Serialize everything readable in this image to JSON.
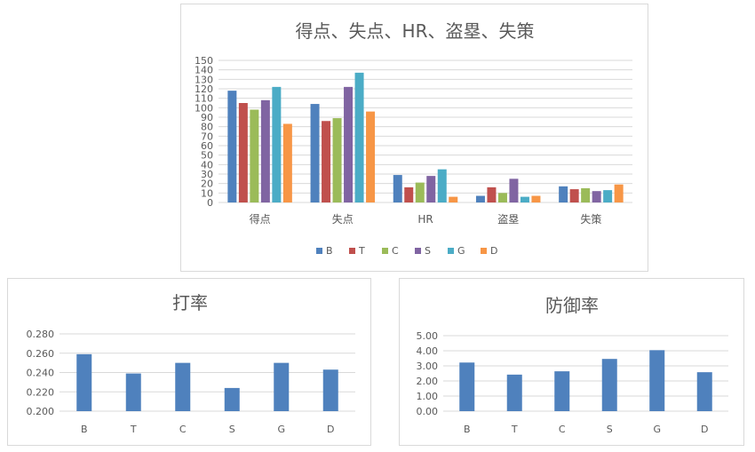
{
  "colors": {
    "B": "#4F81BD",
    "T": "#C0504D",
    "C": "#9BBB59",
    "S": "#8064A2",
    "G": "#4BACC6",
    "D": "#F79646",
    "single": "#4F81BD",
    "grid": "#d9d9d9",
    "text": "#595959"
  },
  "chart_data": [
    {
      "type": "bar",
      "title": "得点、失点、HR、盗塁、失策",
      "categories": [
        "得点",
        "失点",
        "HR",
        "盗塁",
        "失策"
      ],
      "series": [
        {
          "name": "B",
          "values": [
            118,
            104,
            29,
            7,
            17
          ]
        },
        {
          "name": "T",
          "values": [
            105,
            86,
            16,
            16,
            14
          ]
        },
        {
          "name": "C",
          "values": [
            98,
            89,
            21,
            10,
            15
          ]
        },
        {
          "name": "S",
          "values": [
            108,
            122,
            28,
            25,
            12
          ]
        },
        {
          "name": "G",
          "values": [
            122,
            137,
            35,
            6,
            13
          ]
        },
        {
          "name": "D",
          "values": [
            83,
            96,
            6,
            7,
            19
          ]
        }
      ],
      "ylim": [
        0,
        150
      ],
      "yticks": [
        0,
        10,
        20,
        30,
        40,
        50,
        60,
        70,
        80,
        90,
        100,
        110,
        120,
        130,
        140,
        150
      ],
      "ytick_labels": [
        "0",
        "10",
        "20",
        "30",
        "40",
        "50",
        "60",
        "70",
        "80",
        "90",
        "100",
        "110",
        "120",
        "130",
        "140",
        "150"
      ],
      "grid": true,
      "legend": "bottom"
    },
    {
      "type": "bar",
      "title": "打率",
      "categories": [
        "B",
        "T",
        "C",
        "S",
        "G",
        "D"
      ],
      "values": [
        0.259,
        0.239,
        0.25,
        0.224,
        0.25,
        0.243
      ],
      "ylim": [
        0.2,
        0.28
      ],
      "yticks": [
        0.2,
        0.22,
        0.24,
        0.26,
        0.28
      ],
      "ytick_labels": [
        "0.200",
        "0.220",
        "0.240",
        "0.260",
        "0.280"
      ],
      "grid": true,
      "legend": "none"
    },
    {
      "type": "bar",
      "title": "防御率",
      "categories": [
        "B",
        "T",
        "C",
        "S",
        "G",
        "D"
      ],
      "values": [
        3.22,
        2.42,
        2.64,
        3.46,
        4.04,
        2.58
      ],
      "ylim": [
        0,
        5
      ],
      "yticks": [
        0,
        1,
        2,
        3,
        4,
        5
      ],
      "ytick_labels": [
        "0.00",
        "1.00",
        "2.00",
        "3.00",
        "4.00",
        "5.00"
      ],
      "grid": true,
      "legend": "none"
    }
  ]
}
